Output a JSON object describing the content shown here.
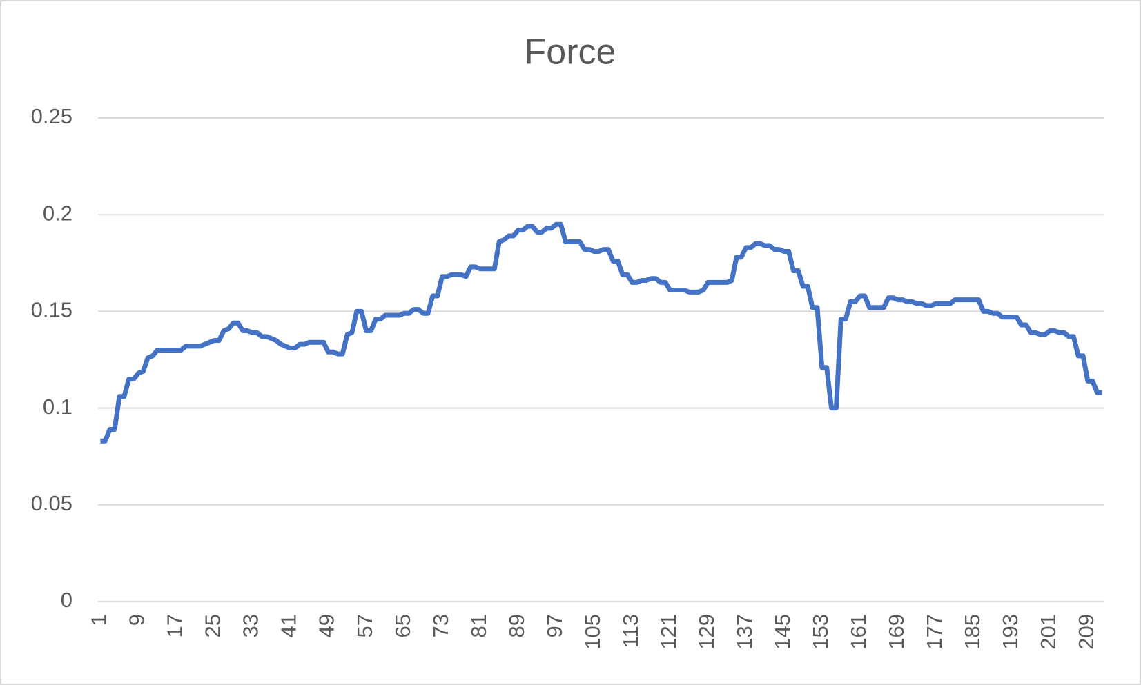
{
  "chart_data": {
    "type": "line",
    "title": "Force",
    "categories": [
      1,
      null,
      null,
      null,
      null,
      null,
      null,
      null,
      9,
      null,
      null,
      null,
      null,
      null,
      null,
      null,
      17,
      null,
      null,
      null,
      null,
      null,
      null,
      null,
      25,
      null,
      null,
      null,
      null,
      null,
      null,
      null,
      33,
      null,
      null,
      null,
      null,
      null,
      null,
      null,
      41,
      null,
      null,
      null,
      null,
      null,
      null,
      null,
      49,
      null,
      null,
      null,
      null,
      null,
      null,
      null,
      57,
      null,
      null,
      null,
      null,
      null,
      null,
      null,
      65,
      null,
      null,
      null,
      null,
      null,
      null,
      null,
      73,
      null,
      null,
      null,
      null,
      null,
      null,
      null,
      81,
      null,
      null,
      null,
      null,
      null,
      null,
      null,
      89,
      null,
      null,
      null,
      null,
      null,
      null,
      null,
      97,
      null,
      null,
      null,
      null,
      null,
      null,
      null,
      105,
      null,
      null,
      null,
      null,
      null,
      null,
      null,
      113,
      null,
      null,
      null,
      null,
      null,
      null,
      null,
      121,
      null,
      null,
      null,
      null,
      null,
      null,
      null,
      129,
      null,
      null,
      null,
      null,
      null,
      null,
      null,
      137,
      null,
      null,
      null,
      null,
      null,
      null,
      null,
      145,
      null,
      null,
      null,
      null,
      null,
      null,
      null,
      153,
      null,
      null,
      null,
      null,
      null,
      null,
      null,
      161,
      null,
      null,
      null,
      null,
      null,
      null,
      null,
      169,
      null,
      null,
      null,
      null,
      null,
      null,
      null,
      177,
      null,
      null,
      null,
      null,
      null,
      null,
      null,
      185,
      null,
      null,
      null,
      null,
      null,
      null,
      null,
      193,
      null,
      null,
      null,
      null,
      null,
      null,
      null,
      201,
      null,
      null,
      null,
      null,
      null,
      null,
      null,
      209,
      null,
      null,
      null
    ],
    "values": [
      0.083,
      0.083,
      0.089,
      0.089,
      0.106,
      0.106,
      0.115,
      0.115,
      0.118,
      0.119,
      0.126,
      0.127,
      0.13,
      0.13,
      0.13,
      0.13,
      0.13,
      0.13,
      0.132,
      0.132,
      0.132,
      0.132,
      0.133,
      0.134,
      0.135,
      0.135,
      0.14,
      0.141,
      0.144,
      0.144,
      0.14,
      0.14,
      0.139,
      0.139,
      0.137,
      0.137,
      0.136,
      0.135,
      0.133,
      0.132,
      0.131,
      0.131,
      0.133,
      0.133,
      0.134,
      0.134,
      0.134,
      0.134,
      0.129,
      0.129,
      0.128,
      0.128,
      0.138,
      0.139,
      0.15,
      0.15,
      0.14,
      0.14,
      0.146,
      0.146,
      0.148,
      0.148,
      0.148,
      0.148,
      0.149,
      0.149,
      0.151,
      0.151,
      0.149,
      0.149,
      0.158,
      0.158,
      0.168,
      0.168,
      0.169,
      0.169,
      0.169,
      0.168,
      0.173,
      0.173,
      0.172,
      0.172,
      0.172,
      0.172,
      0.186,
      0.187,
      0.189,
      0.189,
      0.192,
      0.192,
      0.194,
      0.194,
      0.191,
      0.191,
      0.193,
      0.193,
      0.195,
      0.195,
      0.186,
      0.186,
      0.186,
      0.186,
      0.182,
      0.182,
      0.181,
      0.181,
      0.182,
      0.182,
      0.176,
      0.176,
      0.169,
      0.169,
      0.165,
      0.165,
      0.166,
      0.166,
      0.167,
      0.167,
      0.165,
      0.165,
      0.161,
      0.161,
      0.161,
      0.161,
      0.16,
      0.16,
      0.16,
      0.161,
      0.165,
      0.165,
      0.165,
      0.165,
      0.165,
      0.166,
      0.178,
      0.178,
      0.183,
      0.183,
      0.185,
      0.185,
      0.184,
      0.184,
      0.182,
      0.182,
      0.181,
      0.181,
      0.171,
      0.171,
      0.163,
      0.163,
      0.152,
      0.152,
      0.121,
      0.121,
      0.1,
      0.1,
      0.146,
      0.146,
      0.155,
      0.155,
      0.158,
      0.158,
      0.152,
      0.152,
      0.152,
      0.152,
      0.157,
      0.157,
      0.156,
      0.156,
      0.155,
      0.155,
      0.154,
      0.154,
      0.153,
      0.153,
      0.154,
      0.154,
      0.154,
      0.154,
      0.156,
      0.156,
      0.156,
      0.156,
      0.156,
      0.156,
      0.15,
      0.15,
      0.149,
      0.149,
      0.147,
      0.147,
      0.147,
      0.147,
      0.143,
      0.143,
      0.139,
      0.139,
      0.138,
      0.138,
      0.14,
      0.14,
      0.139,
      0.139,
      0.137,
      0.137,
      0.127,
      0.127,
      0.114,
      0.114,
      0.108,
      0.108
    ],
    "color": "#4472c4",
    "ylim": [
      0,
      0.25
    ],
    "yticks": [
      0,
      0.05,
      0.1,
      0.15,
      0.2,
      0.25
    ],
    "grid": true
  }
}
